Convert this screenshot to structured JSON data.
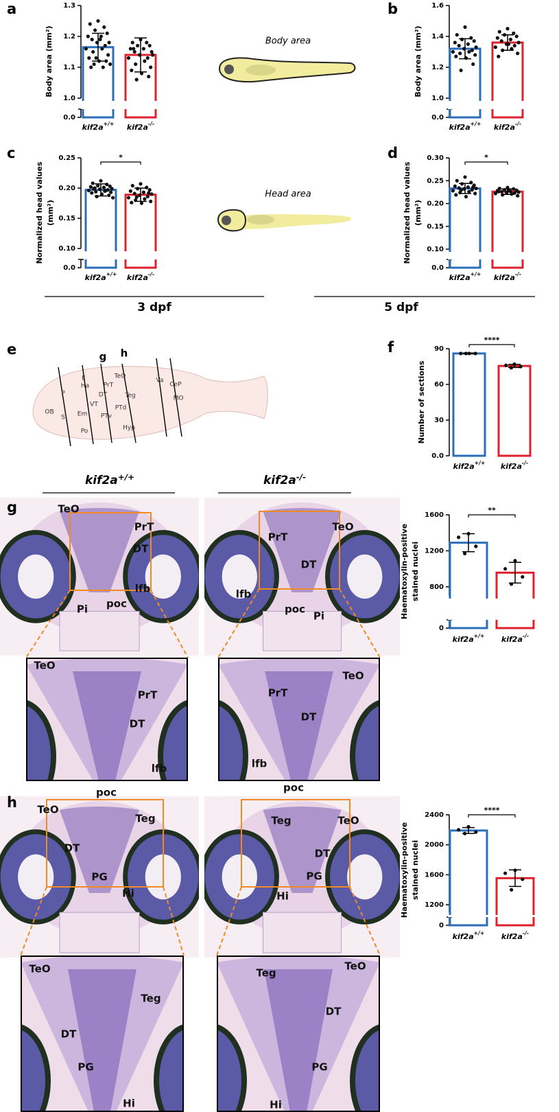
{
  "panel_labels": [
    "a",
    "b",
    "c",
    "d",
    "e",
    "f",
    "g",
    "h"
  ],
  "schematics": [
    "Body area",
    "Head area"
  ],
  "ages": [
    "3 dpf",
    "5 dpf"
  ],
  "genotype_headers": [
    "kif2a+/+",
    "kif2a-/-"
  ],
  "section_diagram": {
    "regions": [
      "OB",
      "P",
      "S",
      "E",
      "Ha",
      "Em",
      "VT",
      "PrT",
      "DT",
      "PTv",
      "Po",
      "TeO",
      "Teg",
      "PTd",
      "Hyp",
      "Va",
      "CeP",
      "MO"
    ],
    "section_markers": [
      "g",
      "h"
    ]
  },
  "histology": [
    {
      "labels": [
        "TeO",
        "PrT",
        "DT",
        "lfb",
        "Pi",
        "poc"
      ]
    },
    {
      "labels": [
        "PrT",
        "TeO",
        "DT",
        "lfb",
        "poc",
        "Pi"
      ]
    },
    {
      "labels": [
        "TeO",
        "PrT",
        "DT",
        "lfb",
        "poc"
      ]
    },
    {
      "labels": [
        "TeO",
        "PrT",
        "DT",
        "lfb",
        "poc"
      ]
    },
    {
      "labels": [
        "TeO",
        "Teg",
        "DT",
        "PG",
        "Hi"
      ]
    },
    {
      "labels": [
        "Teg",
        "TeO",
        "DT",
        "PG",
        "Hi"
      ]
    },
    {
      "labels": [
        "TeO",
        "Teg",
        "DT",
        "PG",
        "Hi"
      ]
    },
    {
      "labels": [
        "Teg",
        "TeO",
        "DT",
        "PG",
        "Hi"
      ]
    }
  ],
  "chart_data": [
    {
      "type": "bar",
      "ylabel": [
        "Body area (mm²)"
      ],
      "categories": [
        "kif2a+/+",
        "kif2a-/-"
      ],
      "colors": [
        "#2a6ebb",
        "#e0202c"
      ],
      "values": [
        1.165,
        1.14
      ],
      "errors": [
        0.045,
        0.055
      ],
      "points": [
        [
          1.25,
          1.24,
          1.23,
          1.22,
          1.21,
          1.2,
          1.2,
          1.19,
          1.18,
          1.18,
          1.17,
          1.16,
          1.16,
          1.15,
          1.14,
          1.13,
          1.12,
          1.12,
          1.11,
          1.11,
          1.1,
          1.1,
          1.13,
          1.19
        ],
        [
          1.19,
          1.18,
          1.18,
          1.17,
          1.17,
          1.16,
          1.16,
          1.15,
          1.15,
          1.14,
          1.13,
          1.13,
          1.12,
          1.11,
          1.1,
          1.09,
          1.08,
          1.07,
          1.06,
          1.14,
          1.16
        ]
      ],
      "ylim": [
        1.0,
        1.3
      ],
      "yticks": [
        {
          "value": 1.0,
          "label": "1.0"
        },
        1.1,
        1.2,
        1.3
      ],
      "ybreak_tick": {
        "value": 0,
        "label": "0.0"
      }
    },
    {
      "type": "bar",
      "ylabel": [
        "Body area (mm²)"
      ],
      "categories": [
        "kif2a+/+",
        "kif2a-/-"
      ],
      "colors": [
        "#2a6ebb",
        "#e0202c"
      ],
      "values": [
        1.32,
        1.36
      ],
      "errors": [
        0.065,
        0.05
      ],
      "points": [
        [
          1.46,
          1.41,
          1.39,
          1.38,
          1.37,
          1.36,
          1.35,
          1.34,
          1.33,
          1.32,
          1.31,
          1.3,
          1.3,
          1.29,
          1.28,
          1.27,
          1.26,
          1.22,
          1.18
        ],
        [
          1.45,
          1.43,
          1.42,
          1.41,
          1.4,
          1.39,
          1.38,
          1.37,
          1.36,
          1.35,
          1.34,
          1.33,
          1.32,
          1.31,
          1.29,
          1.27,
          1.35
        ]
      ],
      "ylim": [
        1.0,
        1.6
      ],
      "yticks": [
        {
          "value": 1.0,
          "label": "1.0"
        },
        1.2,
        1.4,
        1.6
      ],
      "ybreak_tick": {
        "value": 0,
        "label": "0.0"
      }
    },
    {
      "type": "bar",
      "ylabel": [
        "Normalized head values",
        "(mm²)"
      ],
      "categories": [
        "kif2a+/+",
        "kif2a-/-"
      ],
      "colors": [
        "#2a6ebb",
        "#e0202c"
      ],
      "values": [
        0.197,
        0.189
      ],
      "errors": [
        0.01,
        0.011
      ],
      "significance": "*",
      "points": [
        [
          0.212,
          0.208,
          0.206,
          0.204,
          0.203,
          0.202,
          0.201,
          0.2,
          0.199,
          0.198,
          0.197,
          0.196,
          0.195,
          0.194,
          0.193,
          0.192,
          0.19,
          0.188,
          0.186,
          0.184,
          0.199,
          0.196
        ],
        [
          0.207,
          0.204,
          0.201,
          0.199,
          0.197,
          0.195,
          0.193,
          0.191,
          0.19,
          0.188,
          0.186,
          0.184,
          0.182,
          0.18,
          0.178,
          0.176,
          0.175,
          0.192,
          0.185
        ]
      ],
      "ylim": [
        0.1,
        0.25
      ],
      "yticks": [
        {
          "value": 0.1,
          "label": "0.10"
        },
        0.15,
        {
          "value": 0.2,
          "label": "0.20"
        },
        0.25
      ],
      "ybreak_tick": {
        "value": 0,
        "label": "0.0"
      }
    },
    {
      "type": "bar",
      "ylabel": [
        "Normalized head values",
        "(mm²)"
      ],
      "categories": [
        "kif2a+/+",
        "kif2a-/-"
      ],
      "colors": [
        "#2a6ebb",
        "#e0202c"
      ],
      "values": [
        0.233,
        0.226
      ],
      "errors": [
        0.011,
        0.006
      ],
      "significance": "*",
      "points": [
        [
          0.258,
          0.25,
          0.246,
          0.243,
          0.24,
          0.238,
          0.236,
          0.234,
          0.233,
          0.232,
          0.23,
          0.228,
          0.226,
          0.224,
          0.222,
          0.219,
          0.215,
          0.236,
          0.229
        ],
        [
          0.235,
          0.233,
          0.232,
          0.23,
          0.229,
          0.228,
          0.227,
          0.226,
          0.225,
          0.224,
          0.223,
          0.222,
          0.221,
          0.219,
          0.217,
          0.226,
          0.228
        ]
      ],
      "ylim": [
        0.1,
        0.3
      ],
      "yticks": [
        {
          "value": 0.1,
          "label": "0.10"
        },
        0.15,
        {
          "value": 0.2,
          "label": "0.20"
        },
        0.25,
        {
          "value": 0.3,
          "label": "0.30"
        }
      ],
      "ybreak_tick": {
        "value": 0,
        "label": "0.0"
      }
    },
    {
      "type": "bar",
      "ylabel": [
        "Number of sections"
      ],
      "categories": [
        "kif2a+/+",
        "kif2a-/-"
      ],
      "colors": [
        "#2a6ebb",
        "#e0202c"
      ],
      "values": [
        86,
        75.5
      ],
      "errors": [
        0.3,
        1.3
      ],
      "significance": "****",
      "points": [
        [
          86,
          86,
          86,
          86
        ],
        [
          77,
          76,
          75,
          74
        ]
      ],
      "ylim": [
        0,
        90
      ],
      "yticks": [
        {
          "value": 0,
          "label": "0.0"
        },
        30,
        60,
        90
      ]
    },
    {
      "type": "bar",
      "ylabel": [
        "Haematoxylin-positive",
        "stained nuclei"
      ],
      "categories": [
        "kif2a+/+",
        "kif2a-/-"
      ],
      "colors": [
        "#2a6ebb",
        "#e0202c"
      ],
      "values": [
        1290,
        957
      ],
      "errors": [
        100,
        115
      ],
      "significance": "**",
      "points": [
        [
          1390,
          1350,
          1250,
          1170
        ],
        [
          1090,
          1000,
          910,
          830
        ]
      ],
      "ylim": [
        700,
        1600
      ],
      "yticks": [
        800,
        1200,
        1600
      ],
      "ybreak_tick": 0
    },
    {
      "type": "bar",
      "ylabel": [
        "Haematoxylin-positive",
        "stained nuclei"
      ],
      "categories": [
        "kif2a+/+",
        "kif2a-/-"
      ],
      "colors": [
        "#2a6ebb",
        "#e0202c"
      ],
      "values": [
        2190,
        1555
      ],
      "errors": [
        40,
        110
      ],
      "significance": "****",
      "points": [
        [
          2240,
          2200,
          2170,
          2150
        ],
        [
          1660,
          1620,
          1540,
          1400
        ]
      ],
      "ylim": [
        1100,
        2400
      ],
      "yticks": [
        1200,
        1600,
        2000,
        2400
      ],
      "ybreak_tick": 0
    }
  ]
}
